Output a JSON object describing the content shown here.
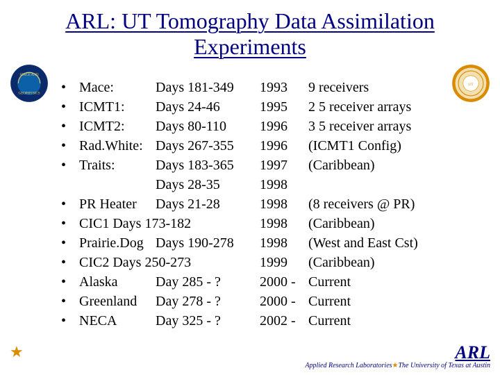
{
  "title": "ARL: UT Tomography Data Assimilation Experiments",
  "colors": {
    "title_color": "#000080",
    "text_color": "#000000",
    "background": "#ffffff",
    "logo_left_outer": "#0a2a6a",
    "logo_left_inner": "#0b60a8",
    "logo_left_text": "#f5d060",
    "logo_right_ring": "#d98c00",
    "logo_right_inner": "#f3e0b0",
    "star": "#d98c00"
  },
  "logos": {
    "left_label": "SPACE AND GEOPHYSICS",
    "right_label": "The University of Texas"
  },
  "rows": [
    {
      "bullet": true,
      "name": "Mace:",
      "days": "Days 181-349",
      "year": "1993",
      "note": "9 receivers"
    },
    {
      "bullet": true,
      "name": "ICMT1:",
      "days": "Days 24-46",
      "year": "1995",
      "note": "2 5 receiver arrays"
    },
    {
      "bullet": true,
      "name": "ICMT2:",
      "days": "Days 80-110",
      "year": "1996",
      "note": "3 5 receiver arrays"
    },
    {
      "bullet": true,
      "name": "Rad.White:",
      "days": "Days 267-355",
      "year": "1996",
      "note": "(ICMT1 Config)"
    },
    {
      "bullet": true,
      "name": "Traits:",
      "days": "Days 183-365",
      "year": "1997",
      "note": "(Caribbean)"
    },
    {
      "bullet": false,
      "name": "",
      "days": "Days 28-35",
      "year": "1998",
      "note": ""
    },
    {
      "bullet": true,
      "name": "PR Heater",
      "days": "Days 21-28",
      "year": "1998",
      "note": "(8 receivers @ PR)"
    },
    {
      "bullet": true,
      "wide": true,
      "name": "CIC1 Days 173-182",
      "days": "",
      "year": "1998",
      "note": "(Caribbean)"
    },
    {
      "bullet": true,
      "name": "Prairie.Dog",
      "days": "Days 190-278",
      "year": "1998",
      "note": "(West and East Cst)"
    },
    {
      "bullet": true,
      "wide": true,
      "name": "CIC2 Days 250-273",
      "days": "",
      "year": "1999",
      "note": "(Caribbean)"
    },
    {
      "bullet": true,
      "name": "Alaska",
      "days": "Day 285 - ?",
      "year": "2000 -",
      "note": "Current"
    },
    {
      "bullet": true,
      "name": "Greenland",
      "days": "Day 278 - ?",
      "year": "2000 -",
      "note": "Current"
    },
    {
      "bullet": true,
      "name": "NECA",
      "days": "Day 325 - ?",
      "year": "2002 -",
      "note": "Current"
    }
  ],
  "footer": {
    "arl": "ARL",
    "lab": "Applied Research Laboratories",
    "univ": "The University of Texas at Austin",
    "star": "★"
  }
}
